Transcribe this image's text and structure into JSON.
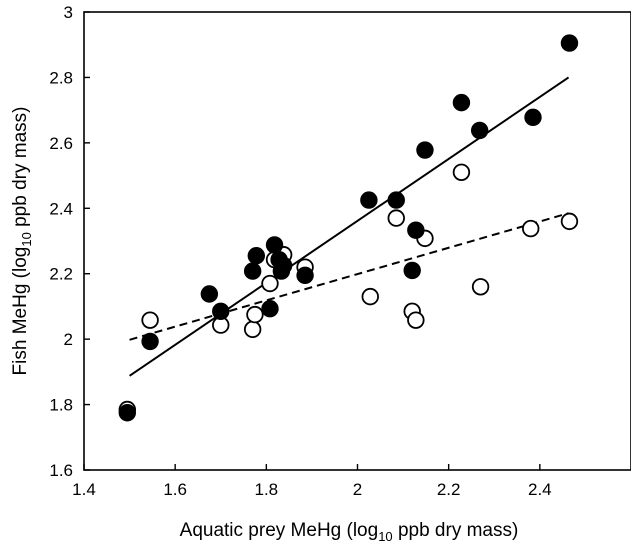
{
  "chart_data": {
    "type": "scatter",
    "xlim": [
      1.4,
      2.6
    ],
    "ylim": [
      1.6,
      3.0
    ],
    "xticks": [
      "1.4",
      "1.6",
      "1.8",
      "2",
      "2.2",
      "2.4"
    ],
    "yticks": [
      "1.6",
      "1.8",
      "2",
      "2.2",
      "2.4",
      "2.6",
      "2.8",
      "3"
    ],
    "xlabel": {
      "pre": "Aquatic prey MeHg (log",
      "sub": "10",
      "post": " ppb dry mass)"
    },
    "ylabel": {
      "pre": "Fish MeHg (log",
      "sub": "10",
      "post": " ppb dry mass)"
    },
    "grid": false,
    "series": [
      {
        "marker": "filled-circle",
        "color": "#000000",
        "points": [
          [
            1.495,
            1.775
          ],
          [
            1.545,
            1.993
          ],
          [
            1.675,
            2.138
          ],
          [
            1.7,
            2.085
          ],
          [
            1.77,
            2.208
          ],
          [
            1.778,
            2.255
          ],
          [
            1.808,
            2.093
          ],
          [
            1.818,
            2.288
          ],
          [
            1.828,
            2.243
          ],
          [
            1.833,
            2.208
          ],
          [
            1.838,
            2.225
          ],
          [
            1.885,
            2.195
          ],
          [
            2.025,
            2.425
          ],
          [
            2.085,
            2.425
          ],
          [
            2.12,
            2.21
          ],
          [
            2.128,
            2.333
          ],
          [
            2.148,
            2.578
          ],
          [
            2.228,
            2.723
          ],
          [
            2.268,
            2.638
          ],
          [
            2.385,
            2.678
          ],
          [
            2.465,
            2.905
          ]
        ],
        "trend": {
          "style": "solid",
          "x": [
            1.5,
            2.463
          ],
          "y": [
            1.888,
            2.8
          ]
        }
      },
      {
        "marker": "open-circle",
        "color": "#000000",
        "points": [
          [
            1.495,
            1.785
          ],
          [
            1.545,
            2.058
          ],
          [
            1.7,
            2.043
          ],
          [
            1.77,
            2.03
          ],
          [
            1.775,
            2.075
          ],
          [
            1.808,
            2.17
          ],
          [
            1.818,
            2.243
          ],
          [
            1.838,
            2.258
          ],
          [
            1.885,
            2.22
          ],
          [
            2.028,
            2.13
          ],
          [
            2.085,
            2.37
          ],
          [
            2.12,
            2.085
          ],
          [
            2.128,
            2.058
          ],
          [
            2.148,
            2.308
          ],
          [
            2.228,
            2.51
          ],
          [
            2.27,
            2.16
          ],
          [
            2.38,
            2.338
          ],
          [
            2.465,
            2.36
          ]
        ],
        "trend": {
          "style": "dashed",
          "x": [
            1.5,
            2.463
          ],
          "y": [
            1.998,
            2.385
          ]
        }
      }
    ]
  }
}
